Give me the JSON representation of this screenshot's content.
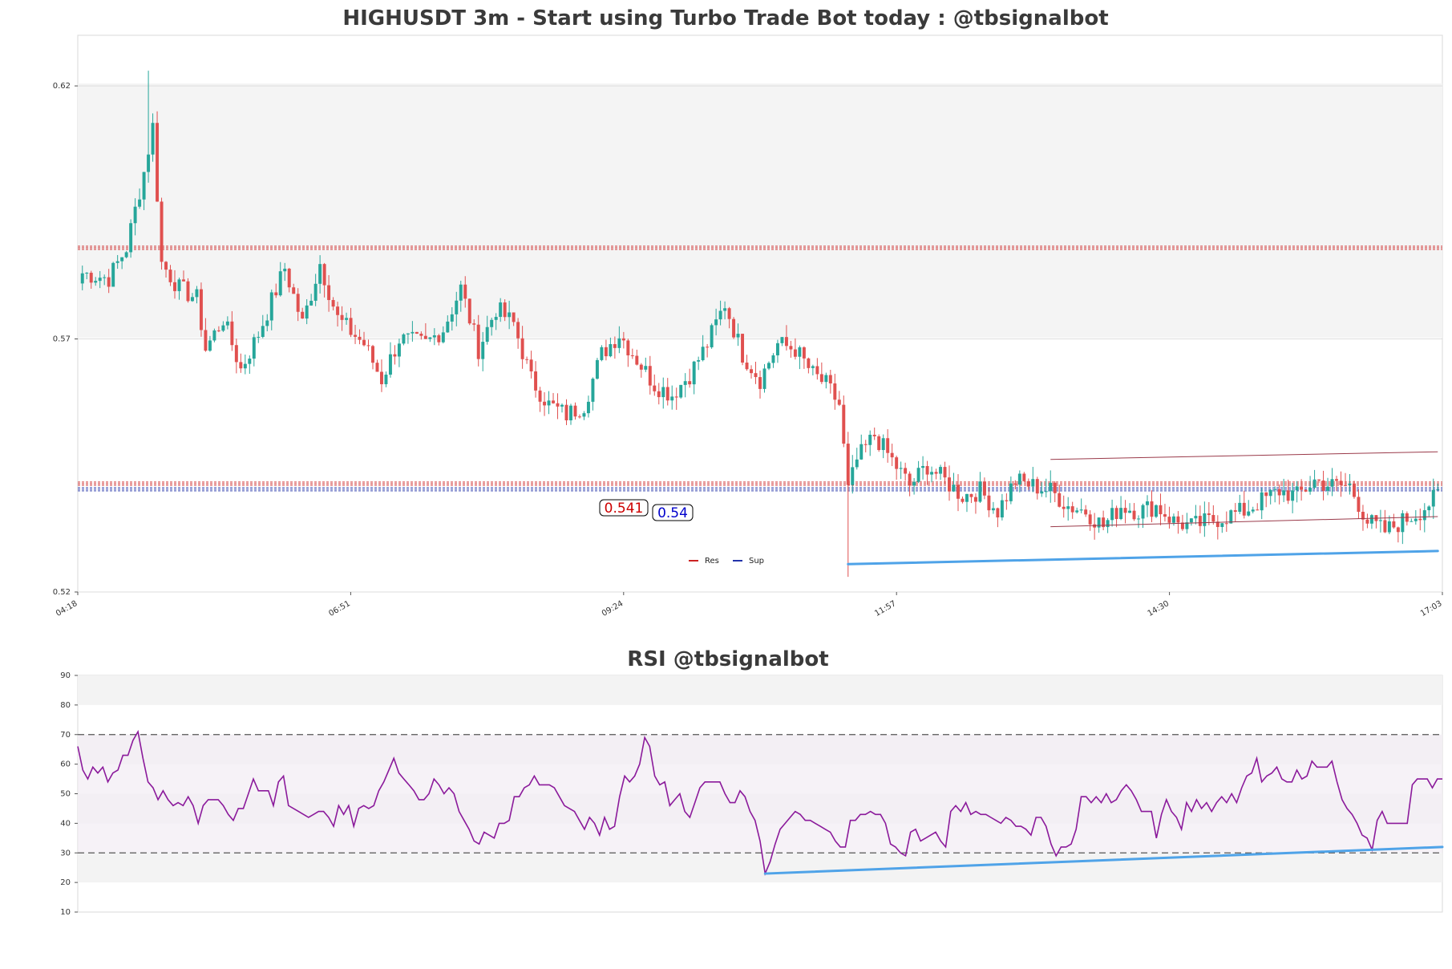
{
  "colors": {
    "bull": "#26a69a",
    "bear": "#e0504f",
    "resistance": "#cc2222",
    "support": "#2233aa",
    "trend": "#4fa3e8",
    "rsi": "#8b1a9b",
    "channel": "#9a3a4a",
    "band": "#ececec"
  },
  "chart_data": [
    {
      "type": "candlestick",
      "title": "HIGHUSDT 3m - Start using Turbo Trade Bot today : @tbsignalbot",
      "x_tick_labels": [
        "04:18",
        "06:51",
        "09:24",
        "11:57",
        "14:30",
        "17:03"
      ],
      "y_tick_labels": [
        "0.52",
        "0.57",
        "0.62"
      ],
      "ylim": [
        0.52,
        0.63
      ],
      "legend": [
        "Res",
        "Sup"
      ],
      "resistance_levels": [
        0.588,
        0.5414
      ],
      "support_levels": [
        0.5403
      ],
      "level_labels": [
        "0.541",
        "0.54"
      ],
      "close_anchors": [
        [
          0,
          0.583
        ],
        [
          6,
          0.582
        ],
        [
          10,
          0.588
        ],
        [
          14,
          0.603
        ],
        [
          16,
          0.612
        ],
        [
          18,
          0.585
        ],
        [
          22,
          0.58
        ],
        [
          26,
          0.578
        ],
        [
          28,
          0.568
        ],
        [
          32,
          0.574
        ],
        [
          36,
          0.564
        ],
        [
          40,
          0.571
        ],
        [
          46,
          0.584
        ],
        [
          50,
          0.573
        ],
        [
          54,
          0.585
        ],
        [
          58,
          0.574
        ],
        [
          64,
          0.569
        ],
        [
          68,
          0.562
        ],
        [
          72,
          0.57
        ],
        [
          78,
          0.569
        ],
        [
          82,
          0.572
        ],
        [
          86,
          0.58
        ],
        [
          90,
          0.568
        ],
        [
          94,
          0.576
        ],
        [
          98,
          0.573
        ],
        [
          102,
          0.562
        ],
        [
          106,
          0.557
        ],
        [
          110,
          0.555
        ],
        [
          114,
          0.557
        ],
        [
          118,
          0.567
        ],
        [
          122,
          0.571
        ],
        [
          126,
          0.566
        ],
        [
          130,
          0.561
        ],
        [
          134,
          0.559
        ],
        [
          138,
          0.563
        ],
        [
          142,
          0.569
        ],
        [
          146,
          0.577
        ],
        [
          150,
          0.567
        ],
        [
          154,
          0.562
        ],
        [
          158,
          0.569
        ],
        [
          162,
          0.568
        ],
        [
          166,
          0.563
        ],
        [
          169,
          0.561
        ],
        [
          172,
          0.557
        ],
        [
          174,
          0.54
        ],
        [
          176,
          0.546
        ],
        [
          180,
          0.551
        ],
        [
          184,
          0.546
        ],
        [
          188,
          0.541
        ],
        [
          192,
          0.545
        ],
        [
          196,
          0.542
        ],
        [
          200,
          0.539
        ],
        [
          204,
          0.54
        ],
        [
          208,
          0.536
        ],
        [
          212,
          0.542
        ],
        [
          216,
          0.541
        ],
        [
          220,
          0.54
        ],
        [
          224,
          0.537
        ],
        [
          228,
          0.536
        ],
        [
          232,
          0.533
        ],
        [
          236,
          0.537
        ],
        [
          240,
          0.536
        ],
        [
          244,
          0.537
        ],
        [
          248,
          0.534
        ],
        [
          252,
          0.533
        ],
        [
          256,
          0.534
        ],
        [
          260,
          0.535
        ],
        [
          264,
          0.536
        ],
        [
          268,
          0.538
        ],
        [
          272,
          0.54
        ],
        [
          276,
          0.539
        ],
        [
          280,
          0.542
        ],
        [
          284,
          0.541
        ],
        [
          288,
          0.541
        ],
        [
          292,
          0.534
        ],
        [
          296,
          0.532
        ],
        [
          300,
          0.534
        ],
        [
          304,
          0.536
        ],
        [
          308,
          0.539
        ]
      ],
      "candle_count": 309
    },
    {
      "type": "line",
      "title": "RSI @tbsignalbot",
      "y_tick_labels": [
        "10",
        "20",
        "30",
        "40",
        "50",
        "60",
        "70",
        "80",
        "90"
      ],
      "ylim": [
        10,
        90
      ],
      "reference_lines": [
        30,
        70
      ],
      "values": [
        66,
        58,
        55,
        59,
        57,
        59,
        54,
        57,
        58,
        63,
        63,
        68,
        71,
        62,
        54,
        52,
        48,
        51,
        48,
        46,
        47,
        46,
        49,
        46,
        40,
        46,
        48,
        48,
        48,
        46,
        43,
        41,
        45,
        45,
        50,
        55,
        51,
        51,
        51,
        46,
        54,
        56,
        46,
        45,
        44,
        43,
        42,
        43,
        44,
        44,
        42,
        39,
        46,
        43,
        46,
        39,
        45,
        46,
        45,
        46,
        51,
        54,
        58,
        62,
        57,
        55,
        53,
        51,
        48,
        48,
        50,
        55,
        53,
        50,
        52,
        50,
        44,
        41,
        38,
        34,
        33,
        37,
        36,
        35,
        40,
        40,
        41,
        49,
        49,
        52,
        53,
        56,
        53,
        53,
        53,
        52,
        49,
        46,
        45,
        44,
        41,
        38,
        42,
        40,
        36,
        42,
        38,
        39,
        49,
        56,
        54,
        56,
        60,
        69,
        66,
        56,
        53,
        54,
        46,
        48,
        50,
        44,
        42,
        47,
        52,
        54,
        54,
        54,
        54,
        50,
        47,
        47,
        51,
        49,
        44,
        41,
        34,
        23,
        27,
        33,
        38,
        40,
        42,
        44,
        43,
        41,
        41,
        40,
        39,
        38,
        37,
        34,
        32,
        32,
        41,
        41,
        43,
        43,
        44,
        43,
        43,
        40,
        33,
        32,
        30,
        29,
        37,
        38,
        34,
        35,
        36,
        37,
        34,
        32,
        44,
        46,
        44,
        47,
        43,
        44,
        43,
        43,
        42,
        41,
        40,
        42,
        41,
        39,
        39,
        38,
        36,
        42,
        42,
        39,
        33,
        29,
        32,
        32,
        33,
        38,
        49,
        49,
        47,
        49,
        47,
        50,
        47,
        48,
        51,
        53,
        51,
        48,
        44,
        44,
        44,
        35,
        43,
        48,
        44,
        42,
        38,
        47,
        44,
        48,
        45,
        47,
        44,
        47,
        49,
        47,
        50,
        47,
        52,
        56,
        57,
        62,
        54,
        56,
        57,
        59,
        55,
        54,
        54,
        58,
        55,
        56,
        61,
        59,
        59,
        59,
        61,
        54,
        48,
        45,
        43,
        40,
        36,
        35,
        31,
        41,
        44,
        40,
        40,
        40,
        40,
        40,
        53,
        55,
        55,
        55,
        52,
        55,
        55
      ]
    }
  ]
}
